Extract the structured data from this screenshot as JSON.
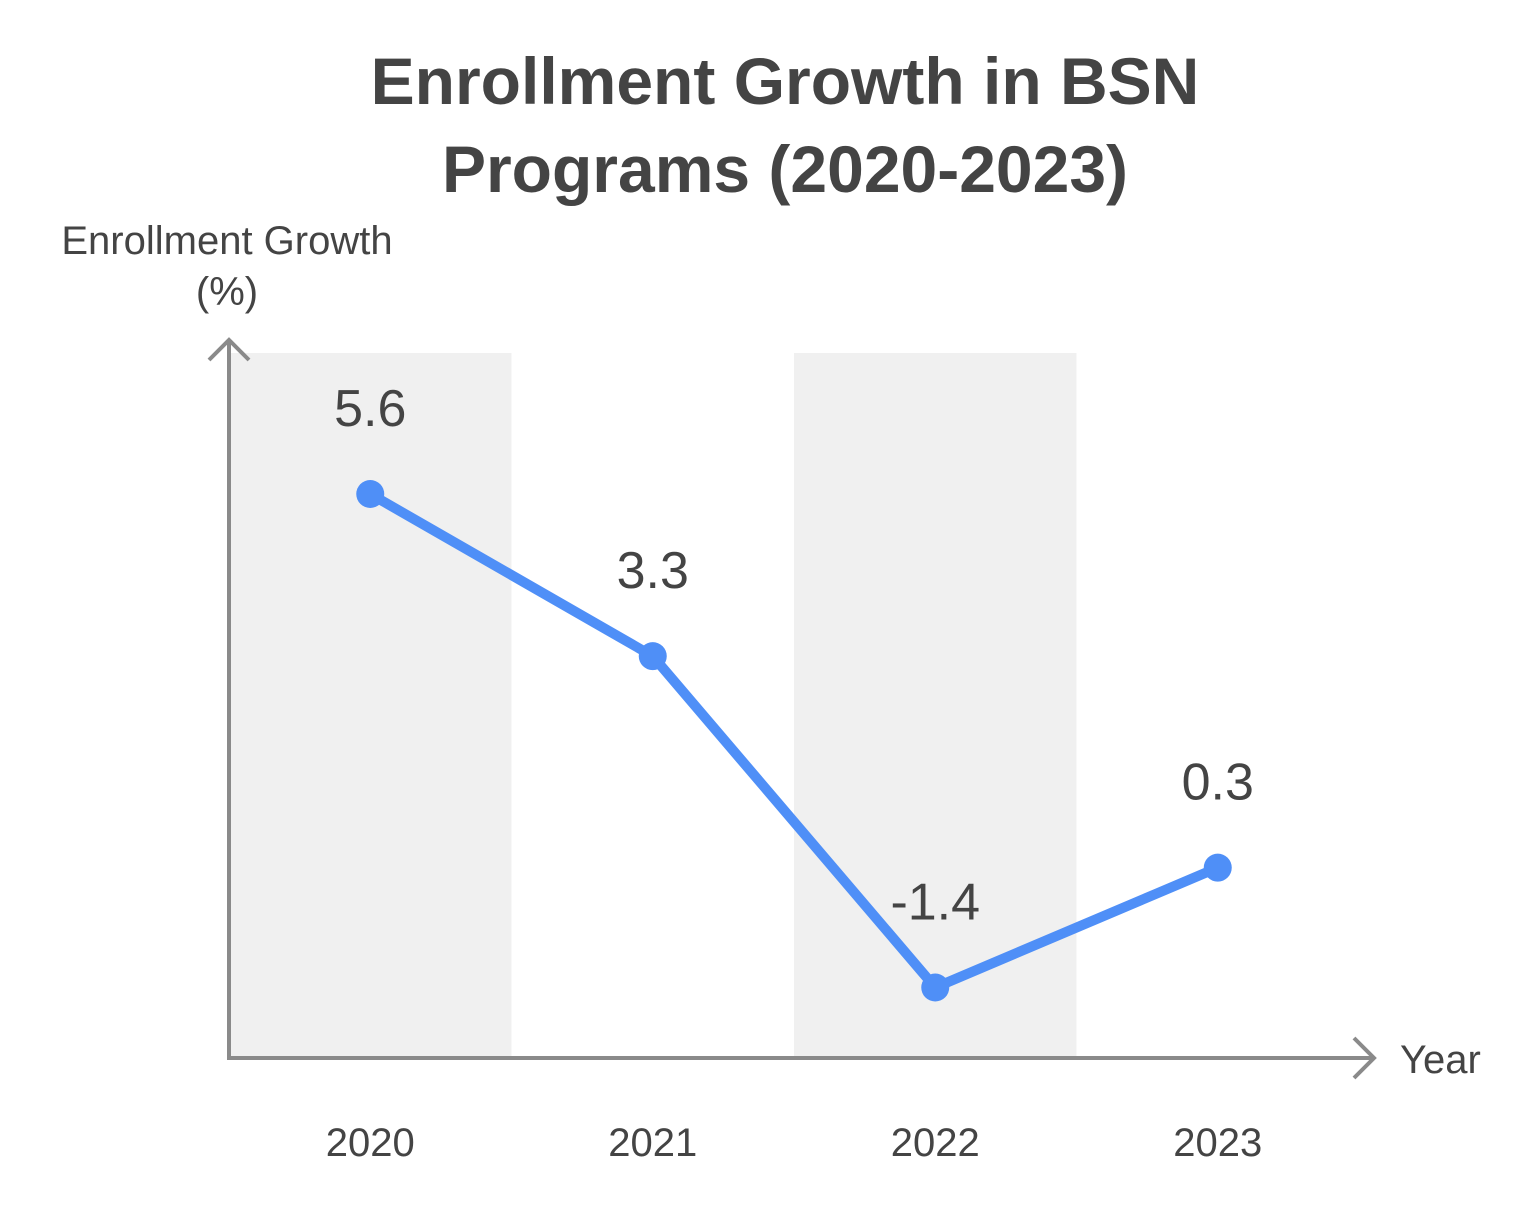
{
  "chart_data": {
    "type": "line",
    "title_lines": [
      "Enrollment Growth in BSN",
      "Programs (2020-2023)"
    ],
    "xlabel": "Year",
    "ylabel_lines": [
      "Enrollment Growth",
      "(%)"
    ],
    "categories": [
      "2020",
      "2021",
      "2022",
      "2023"
    ],
    "values": [
      5.6,
      3.3,
      -1.4,
      0.3
    ],
    "data_labels": [
      "5.6",
      "3.3",
      "-1.4",
      "0.3"
    ],
    "ylim": [
      -2.4,
      7.6
    ],
    "grid": false,
    "alternating_bands": true,
    "colors": {
      "line": "#4F8FF7",
      "band": "#F0F0F0",
      "axis": "#8A8A8A",
      "text": "#444444"
    }
  }
}
